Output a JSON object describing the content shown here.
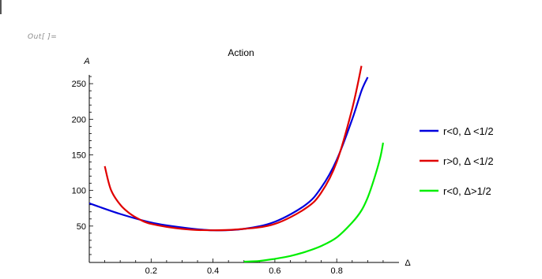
{
  "notebook": {
    "out_label": "Out[ ]="
  },
  "colors": {
    "blue": "#0000dd",
    "red": "#e00000",
    "green": "#00ee00",
    "axis": "#000000"
  },
  "chart_data": {
    "type": "line",
    "title": "Action",
    "xlabel": "Δ",
    "ylabel": "A",
    "xlim": [
      0,
      1.0
    ],
    "ylim": [
      0,
      290
    ],
    "xticks": [
      0.2,
      0.4,
      0.6,
      0.8
    ],
    "xtick_labels": [
      "0.2",
      "0.4",
      "0.6",
      "0.8"
    ],
    "yticks": [
      50,
      100,
      150,
      200,
      250
    ],
    "ytick_labels": [
      "50",
      "100",
      "150",
      "200",
      "250"
    ],
    "legend_position": "right",
    "series": [
      {
        "name": "r<0, Δ <1/2",
        "color": "#0000dd",
        "x": [
          0.0,
          0.1,
          0.2,
          0.3,
          0.4,
          0.5,
          0.6,
          0.7,
          0.75,
          0.8,
          0.85,
          0.88,
          0.9
        ],
        "y": [
          82,
          67,
          55,
          48,
          44,
          46,
          56,
          80,
          104,
          143,
          200,
          240,
          259
        ]
      },
      {
        "name": "r>0, Δ <1/2",
        "color": "#e00000",
        "x": [
          0.05,
          0.07,
          0.1,
          0.13,
          0.16,
          0.2,
          0.3,
          0.4,
          0.5,
          0.6,
          0.7,
          0.75,
          0.8,
          0.85,
          0.88
        ],
        "y": [
          134,
          101,
          80,
          68,
          60,
          53,
          46,
          44,
          46,
          53,
          75,
          97,
          140,
          215,
          275
        ]
      },
      {
        "name": "r<0, Δ>1/2",
        "color": "#00ee00",
        "x": [
          0.5,
          0.55,
          0.6,
          0.65,
          0.7,
          0.75,
          0.8,
          0.85,
          0.88,
          0.9,
          0.92,
          0.94,
          0.95
        ],
        "y": [
          0,
          1,
          4,
          8,
          14,
          22,
          34,
          55,
          72,
          90,
          115,
          145,
          167
        ]
      }
    ]
  }
}
